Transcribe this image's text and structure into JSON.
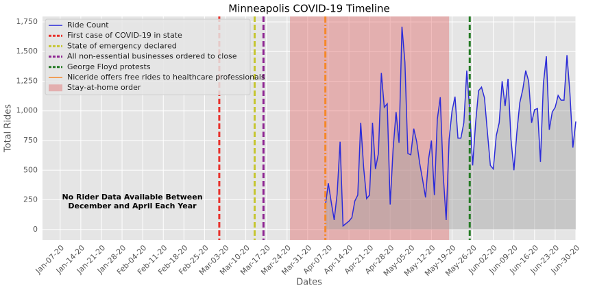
{
  "chart_data": {
    "type": "line",
    "title": "Minneapolis COVID-19 Timeline",
    "xlabel": "Dates",
    "ylabel": "Total Rides",
    "x": [
      "2020-04-06",
      "2020-04-07",
      "2020-04-08",
      "2020-04-09",
      "2020-04-10",
      "2020-04-11",
      "2020-04-12",
      "2020-04-13",
      "2020-04-14",
      "2020-04-15",
      "2020-04-16",
      "2020-04-17",
      "2020-04-18",
      "2020-04-19",
      "2020-04-20",
      "2020-04-21",
      "2020-04-22",
      "2020-04-23",
      "2020-04-24",
      "2020-04-25",
      "2020-04-26",
      "2020-04-27",
      "2020-04-28",
      "2020-04-29",
      "2020-04-30",
      "2020-05-01",
      "2020-05-02",
      "2020-05-03",
      "2020-05-04",
      "2020-05-05",
      "2020-05-06",
      "2020-05-07",
      "2020-05-08",
      "2020-05-09",
      "2020-05-10",
      "2020-05-11",
      "2020-05-12",
      "2020-05-13",
      "2020-05-14",
      "2020-05-15",
      "2020-05-16",
      "2020-05-17",
      "2020-05-18",
      "2020-05-19",
      "2020-05-20",
      "2020-05-21",
      "2020-05-22",
      "2020-05-23",
      "2020-05-24",
      "2020-05-25",
      "2020-05-26",
      "2020-05-27",
      "2020-05-28",
      "2020-05-29",
      "2020-05-30",
      "2020-05-31",
      "2020-06-01",
      "2020-06-02",
      "2020-06-03",
      "2020-06-04",
      "2020-06-05",
      "2020-06-06",
      "2020-06-07",
      "2020-06-08",
      "2020-06-09",
      "2020-06-10",
      "2020-06-11",
      "2020-06-12",
      "2020-06-13",
      "2020-06-14",
      "2020-06-15",
      "2020-06-16",
      "2020-06-17",
      "2020-06-18",
      "2020-06-19",
      "2020-06-20",
      "2020-06-21",
      "2020-06-22",
      "2020-06-23",
      "2020-06-24",
      "2020-06-25",
      "2020-06-26",
      "2020-06-27",
      "2020-06-28",
      "2020-06-29",
      "2020-06-30"
    ],
    "series": [
      {
        "name": "Ride Count",
        "color": "#2b2bd9",
        "fill": "#9a9a9a",
        "values": [
          200,
          390,
          230,
          80,
          300,
          740,
          30,
          50,
          70,
          100,
          240,
          290,
          900,
          520,
          260,
          290,
          900,
          510,
          640,
          1320,
          1030,
          1060,
          210,
          680,
          990,
          730,
          1710,
          1410,
          640,
          630,
          850,
          740,
          560,
          420,
          270,
          590,
          750,
          290,
          930,
          1115,
          460,
          80,
          760,
          1000,
          1120,
          770,
          770,
          900,
          1340,
          1000,
          540,
          900,
          1170,
          1200,
          1110,
          820,
          540,
          510,
          790,
          900,
          1250,
          1040,
          1270,
          760,
          500,
          820,
          1070,
          1180,
          1340,
          1250,
          900,
          1010,
          1020,
          570,
          1230,
          1460,
          840,
          990,
          1030,
          1130,
          1090,
          1090,
          1470,
          1150,
          690,
          910
        ]
      }
    ],
    "vlines": [
      {
        "name": "First case of COVID-19 in state",
        "x": "2020-03-01",
        "color": "#e8302a",
        "style": "dashed"
      },
      {
        "name": "State of emergency declared",
        "x": "2020-03-13",
        "color": "#c6c632",
        "style": "dashed"
      },
      {
        "name": "All non-essential businesses ordered to close",
        "x": "2020-03-16",
        "color": "#8e2592",
        "style": "dashed"
      },
      {
        "name": "George Floyd protests",
        "x": "2020-05-25",
        "color": "#237a23",
        "style": "dashed"
      },
      {
        "name": "Niceride offers free rides to healthcare professionals",
        "x": "2020-04-06",
        "color": "#f5882a",
        "style": "dashdot"
      }
    ],
    "spans": [
      {
        "name": "Stay-at-home order",
        "start": "2020-03-25",
        "end": "2020-05-18",
        "color": "#e06060"
      }
    ],
    "annotation": [
      "No Rider Data Available Between",
      "December and April Each Year"
    ],
    "xlim": [
      "2020-01-01",
      "2020-06-30"
    ],
    "xticks": [
      {
        "value": "2020-01-07",
        "label": "Jan-07-20"
      },
      {
        "value": "2020-01-14",
        "label": "Jan-14-20"
      },
      {
        "value": "2020-01-21",
        "label": "Jan-21-20"
      },
      {
        "value": "2020-01-28",
        "label": "Jan-28-20"
      },
      {
        "value": "2020-02-04",
        "label": "Feb-04-20"
      },
      {
        "value": "2020-02-11",
        "label": "Feb-11-20"
      },
      {
        "value": "2020-02-18",
        "label": "Feb-18-20"
      },
      {
        "value": "2020-02-25",
        "label": "Feb-25-20"
      },
      {
        "value": "2020-03-03",
        "label": "Mar-03-20"
      },
      {
        "value": "2020-03-10",
        "label": "Mar-10-20"
      },
      {
        "value": "2020-03-17",
        "label": "Mar-17-20"
      },
      {
        "value": "2020-03-24",
        "label": "Mar-24-20"
      },
      {
        "value": "2020-03-31",
        "label": "Mar-31-20"
      },
      {
        "value": "2020-04-07",
        "label": "Apr-07-20"
      },
      {
        "value": "2020-04-14",
        "label": "Apr-14-20"
      },
      {
        "value": "2020-04-21",
        "label": "Apr-21-20"
      },
      {
        "value": "2020-04-28",
        "label": "Apr-28-20"
      },
      {
        "value": "2020-05-05",
        "label": "May-05-20"
      },
      {
        "value": "2020-05-12",
        "label": "May-12-20"
      },
      {
        "value": "2020-05-19",
        "label": "May-19-20"
      },
      {
        "value": "2020-05-26",
        "label": "May-26-20"
      },
      {
        "value": "2020-06-02",
        "label": "Jun-02-20"
      },
      {
        "value": "2020-06-09",
        "label": "Jun-09-20"
      },
      {
        "value": "2020-06-16",
        "label": "Jun-16-20"
      },
      {
        "value": "2020-06-23",
        "label": "Jun-23-20"
      },
      {
        "value": "2020-06-30",
        "label": "Jun-30-20"
      }
    ],
    "ylim": [
      -88,
      1796
    ],
    "yticks": [
      0,
      250,
      500,
      750,
      {
        "value": 1000,
        "label": "1,000"
      },
      {
        "value": 1250,
        "label": "1,250"
      },
      {
        "value": 1500,
        "label": "1,500"
      },
      {
        "value": 1750,
        "label": "1,750"
      }
    ],
    "grid": true,
    "legend": "upper left"
  }
}
